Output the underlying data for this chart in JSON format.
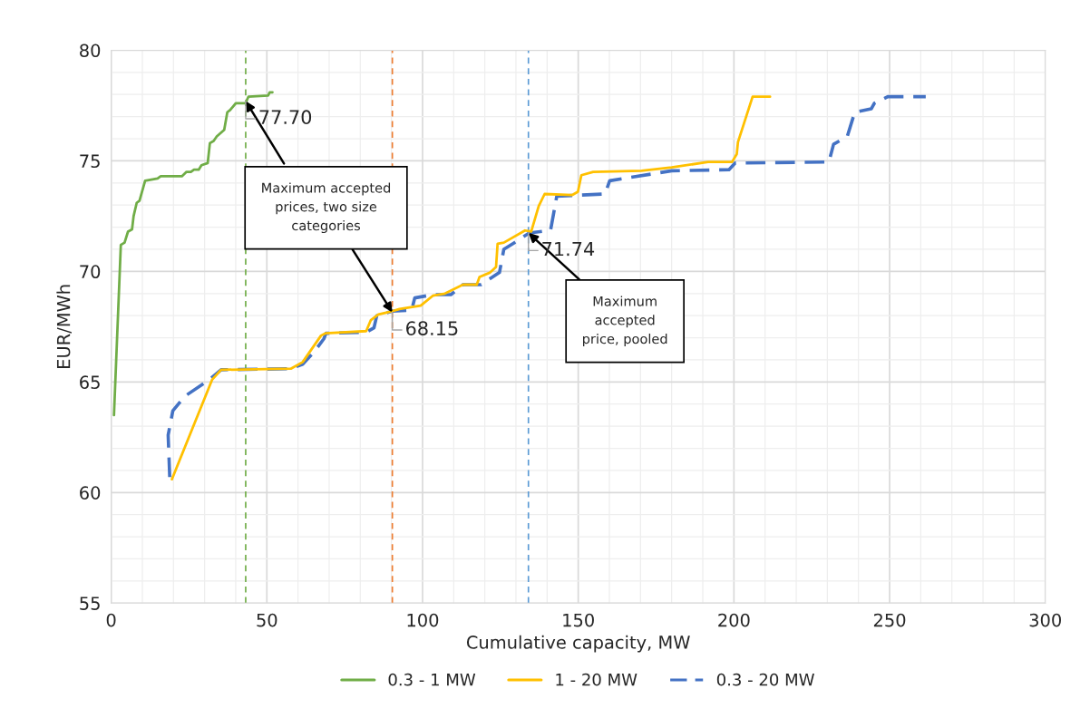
{
  "chart_data": {
    "type": "line",
    "xlabel": "Cumulative capacity, MW",
    "ylabel": "EUR/MWh",
    "xlim": [
      0,
      300
    ],
    "xticks": [
      0,
      50,
      100,
      150,
      200,
      250,
      300
    ],
    "ylim": [
      55,
      80
    ],
    "yticks": [
      55,
      60,
      65,
      70,
      75,
      80
    ],
    "grid": true,
    "legend": "bottom",
    "marker": "none",
    "series": [
      {
        "name": "0.3 - 1 MW",
        "color": "#70ad47",
        "line_style": "solid",
        "x": [
          0.9,
          3.1,
          4.3,
          5.4,
          6.7,
          7.2,
          8.2,
          9.1,
          10.9,
          14.9,
          15.9,
          22.7,
          24.2,
          25.6,
          26.6,
          28.1,
          29.0,
          31.0,
          31.7,
          32.9,
          33.9,
          36.3,
          37.3,
          38.2,
          40.0,
          43.1,
          44.1,
          50.4,
          50.9,
          51.8
        ],
        "values": [
          63.5,
          71.2,
          71.3,
          71.8,
          71.9,
          72.5,
          73.1,
          73.2,
          74.1,
          74.2,
          74.3,
          74.3,
          74.5,
          74.5,
          74.6,
          74.6,
          74.8,
          74.9,
          75.8,
          75.9,
          76.1,
          76.4,
          77.2,
          77.3,
          77.6,
          77.6,
          77.9,
          77.95,
          78.1,
          78.1
        ]
      },
      {
        "name": "1 - 20 MW",
        "color": "#ffc000",
        "line_style": "solid",
        "x": [
          19.5,
          32.4,
          35.3,
          57.7,
          61.5,
          67.4,
          68.8,
          81.9,
          83.4,
          85.8,
          90.2,
          92.6,
          99.4,
          103.3,
          107.2,
          113.0,
          117.4,
          118.3,
          121.7,
          123.6,
          124.1,
          126.1,
          132.9,
          134.9,
          137.3,
          139.2,
          148.0,
          149.9,
          151.0,
          154.8,
          170.3,
          180.0,
          191.7,
          199.4,
          200.9,
          201.3,
          206.0,
          211.6
        ],
        "values": [
          60.6,
          65.1,
          65.55,
          65.6,
          65.9,
          67.1,
          67.2,
          67.3,
          67.8,
          68.05,
          68.2,
          68.3,
          68.45,
          68.9,
          69.0,
          69.4,
          69.4,
          69.75,
          69.95,
          70.2,
          71.25,
          71.3,
          71.85,
          71.8,
          72.95,
          73.5,
          73.45,
          73.6,
          74.35,
          74.5,
          74.55,
          74.7,
          74.95,
          74.95,
          75.3,
          75.85,
          77.9,
          77.9
        ]
      },
      {
        "name": "0.3 - 20 MW",
        "color": "#4472c4",
        "line_style": "dashed",
        "x": [
          18.8,
          18.3,
          19.8,
          23.6,
          31.5,
          35.3,
          57.7,
          61.5,
          65.4,
          68.3,
          69.0,
          81.9,
          84.4,
          85.3,
          90.2,
          96.5,
          97.5,
          103.3,
          109.1,
          113.0,
          118.8,
          124.7,
          126.1,
          129.5,
          134.3,
          141.1,
          143.1,
          158.6,
          160.1,
          180.0,
          198.4,
          200.4,
          230.5,
          232.0,
          236.4,
          238.8,
          244.1,
          245.1,
          249.4,
          261.6
        ],
        "values": [
          60.7,
          62.6,
          63.7,
          64.35,
          65.1,
          65.55,
          65.6,
          65.8,
          66.4,
          66.95,
          67.2,
          67.25,
          67.45,
          68.0,
          68.2,
          68.25,
          68.8,
          68.95,
          68.95,
          69.4,
          69.4,
          69.95,
          71.0,
          71.3,
          71.74,
          71.85,
          73.4,
          73.5,
          74.1,
          74.55,
          74.6,
          74.9,
          74.95,
          75.75,
          76.1,
          77.2,
          77.35,
          77.6,
          77.9,
          77.9
        ]
      }
    ],
    "ref_lines": [
      {
        "axis": "x",
        "value": 43.2,
        "color": "#70ad47",
        "line_style": "dashed"
      },
      {
        "axis": "x",
        "value": 90.3,
        "color": "#ed7d31",
        "line_style": "dashed"
      },
      {
        "axis": "x",
        "value": 134.0,
        "color": "#5b9bd5",
        "line_style": "dashed"
      }
    ],
    "annotations": [
      {
        "text": "77.70",
        "x": 43.2,
        "y": 77.7
      },
      {
        "text": "68.15",
        "x": 90.3,
        "y": 68.15
      },
      {
        "text": "71.74",
        "x": 134.0,
        "y": 71.74
      },
      {
        "text": "Maximum accepted prices, two size categories",
        "x": 90.3,
        "y": 68.15
      },
      {
        "text": "Maximum accepted price, pooled",
        "x": 134.0,
        "y": 71.74
      }
    ]
  }
}
